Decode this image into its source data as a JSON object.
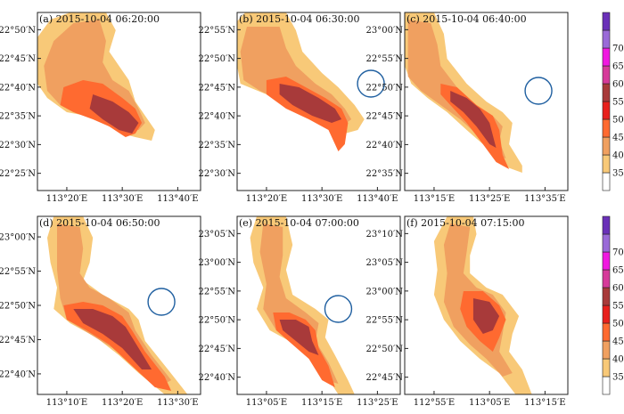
{
  "chart_data": {
    "type": "heatmap",
    "colorbar": {
      "levels": [
        35,
        40,
        45,
        50,
        55,
        60,
        65,
        70
      ],
      "tick_labels": [
        "35",
        "40",
        "45",
        "50",
        "55",
        "60",
        "65",
        "70"
      ],
      "colors": [
        "#ffffff",
        "#f8c978",
        "#f0a060",
        "#ff6a30",
        "#e8201c",
        "#a83a3a",
        "#d63a9a",
        "#f018e0",
        "#9a6ad8",
        "#6a30b8"
      ]
    },
    "panels": [
      {
        "title": "(a) 2015-10-04  06:20:00",
        "xticks": [
          "113°20′E",
          "113°30′E",
          "113°40′E"
        ],
        "yticks": [
          "22°50′N",
          "22°45′N",
          "22°40′N",
          "22°35′N",
          "22°30′N",
          "22°25′N"
        ],
        "circle": false
      },
      {
        "title": "(b) 2015-10-04  06:30:00",
        "xticks": [
          "113°20′E",
          "113°30′E",
          "113°40′E"
        ],
        "yticks": [
          "22°55′N",
          "22°50′N",
          "22°45′N",
          "22°40′N",
          "22°35′N",
          "22°30′N"
        ],
        "circle": true
      },
      {
        "title": "(c) 2015-10-04  06:40:00",
        "xticks": [
          "113°15′E",
          "113°25′E",
          "113°35′E"
        ],
        "yticks": [
          "23°00′N",
          "22°55′N",
          "22°50′N",
          "22°45′N",
          "22°40′N",
          "22°35′N"
        ],
        "circle": true
      },
      {
        "title": "(d) 2015-10-04  06:50:00",
        "xticks": [
          "113°10′E",
          "113°20′E",
          "113°30′E"
        ],
        "yticks": [
          "23°00′N",
          "22°55′N",
          "22°50′N",
          "22°45′N",
          "22°40′N"
        ],
        "circle": true
      },
      {
        "title": "(e) 2015-10-04  07:00:00",
        "xticks": [
          "113°05′E",
          "113°15′E",
          "113°25′E"
        ],
        "yticks": [
          "23°05′N",
          "23°00′N",
          "22°55′N",
          "22°50′N",
          "22°45′N",
          "22°40′N"
        ],
        "circle": true
      },
      {
        "title": "(f) 2015-10-04  07:15:00",
        "xticks": [
          "112°55′E",
          "113°05′E",
          "113°15′E"
        ],
        "yticks": [
          "23°10′N",
          "23°05′N",
          "23°00′N",
          "22°55′N",
          "22°50′N",
          "22°45′N"
        ],
        "circle": false
      }
    ]
  }
}
